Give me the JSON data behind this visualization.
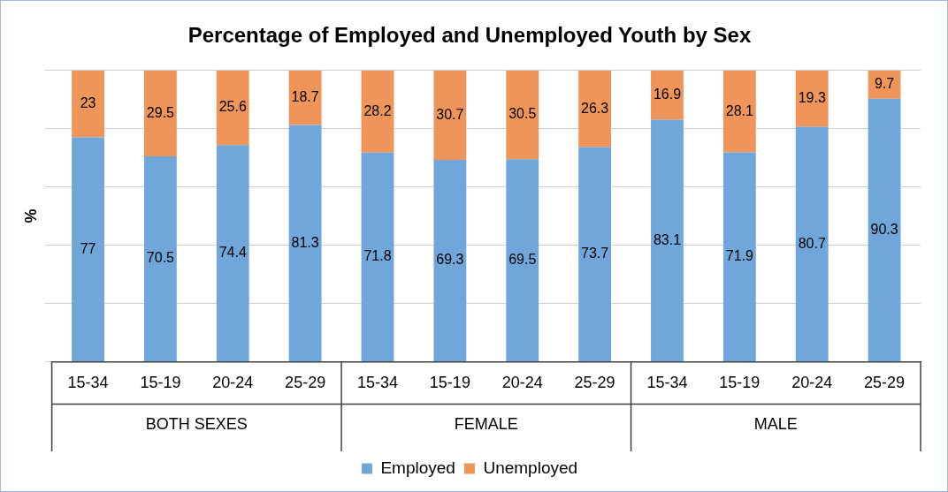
{
  "chart_data": {
    "type": "bar",
    "title": "Percentage of Employed and Unemployed Youth by Sex",
    "ylabel": "%",
    "categories": [
      "15-34",
      "15-19",
      "20-24",
      "25-29",
      "15-34",
      "15-19",
      "20-24",
      "25-29",
      "15-34",
      "15-19",
      "20-24",
      "25-29"
    ],
    "series": [
      {
        "name": "Employed",
        "color": "#70a6da",
        "values": [
          77,
          70.5,
          74.4,
          81.3,
          71.8,
          69.3,
          69.5,
          73.7,
          83.1,
          71.9,
          80.7,
          90.3
        ]
      },
      {
        "name": "Unemployed",
        "color": "#f0955a",
        "values": [
          23,
          29.5,
          25.6,
          18.7,
          28.2,
          30.7,
          30.5,
          26.3,
          16.9,
          28.1,
          19.3,
          9.7
        ]
      }
    ],
    "stacked": true,
    "data_labels": true,
    "ylim": [
      0,
      100
    ],
    "yticks": [
      {
        "value": 0,
        "label": null
      },
      {
        "value": 20,
        "label": null
      },
      {
        "value": 40,
        "label": null
      },
      {
        "value": 60,
        "label": null
      },
      {
        "value": 80,
        "label": null
      },
      {
        "value": 100,
        "label": null
      }
    ],
    "tick_labels": "x",
    "grid": "y",
    "legend": "bottom",
    "annotations": [
      "BOTH SEXES",
      "FEMALE",
      "MALE"
    ]
  }
}
